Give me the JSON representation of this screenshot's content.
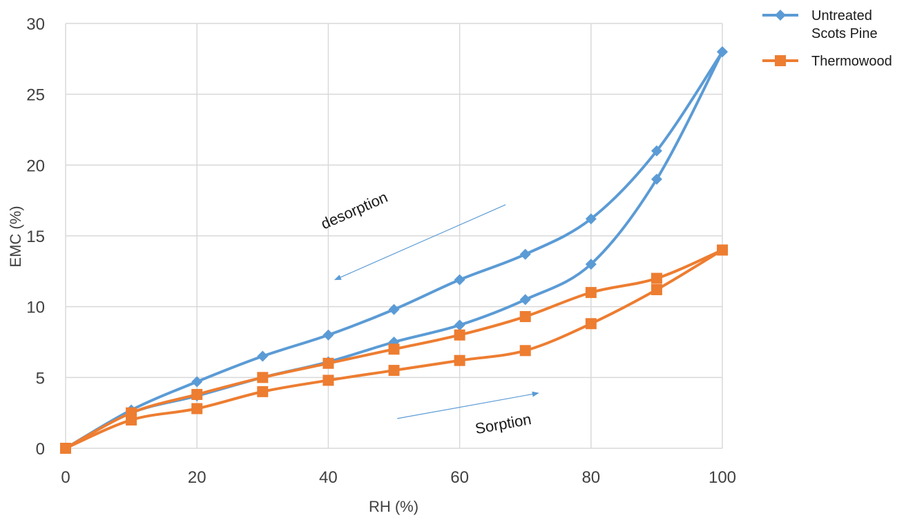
{
  "chart_data": {
    "type": "line",
    "title": "",
    "xlabel": "RH (%)",
    "ylabel": "EMC (%)",
    "xlim": [
      0,
      100
    ],
    "ylim": [
      0,
      30
    ],
    "x_ticks": [
      0,
      20,
      40,
      60,
      80,
      100
    ],
    "y_ticks": [
      0,
      5,
      10,
      15,
      20,
      25,
      30
    ],
    "grid": true,
    "legend_position": "top-right",
    "series": [
      {
        "name": "Untreated Scots Pine",
        "legend_lines": [
          "Untreated",
          "Scots Pine"
        ],
        "color": "#5b9bd5",
        "marker": "diamond",
        "curves": [
          {
            "label": "sorption",
            "x": [
              0,
              10,
              20,
              30,
              40,
              50,
              60,
              70,
              80,
              90,
              100
            ],
            "y": [
              0,
              2.5,
              3.7,
              5.0,
              6.1,
              7.5,
              8.7,
              10.5,
              13.0,
              19.0,
              28.0
            ]
          },
          {
            "label": "desorption",
            "x": [
              100,
              90,
              80,
              70,
              60,
              50,
              40,
              30,
              20,
              10,
              0
            ],
            "y": [
              28.0,
              21.0,
              16.2,
              13.7,
              11.9,
              9.8,
              8.0,
              6.5,
              4.7,
              2.7,
              0
            ]
          }
        ]
      },
      {
        "name": "Thermowood",
        "legend_lines": [
          "Thermowood"
        ],
        "color": "#ed7d31",
        "marker": "square",
        "curves": [
          {
            "label": "sorption",
            "x": [
              0,
              10,
              20,
              30,
              40,
              50,
              60,
              70,
              80,
              90,
              100
            ],
            "y": [
              0,
              2.0,
              2.8,
              4.0,
              4.8,
              5.5,
              6.2,
              6.9,
              8.8,
              11.2,
              14.0
            ]
          },
          {
            "label": "desorption",
            "x": [
              100,
              90,
              80,
              70,
              60,
              50,
              40,
              30,
              20,
              10,
              0
            ],
            "y": [
              14.0,
              12.0,
              11.0,
              9.3,
              8.0,
              7.0,
              6.0,
              5.0,
              3.8,
              2.5,
              0
            ]
          }
        ]
      }
    ],
    "annotations": [
      {
        "text": "desorption",
        "x1": 67,
        "y1": 17.2,
        "x2": 41,
        "y2": 11.9
      },
      {
        "text": "Sorption",
        "x1": 50.5,
        "y1": 2.1,
        "x2": 72,
        "y2": 3.9
      }
    ]
  }
}
